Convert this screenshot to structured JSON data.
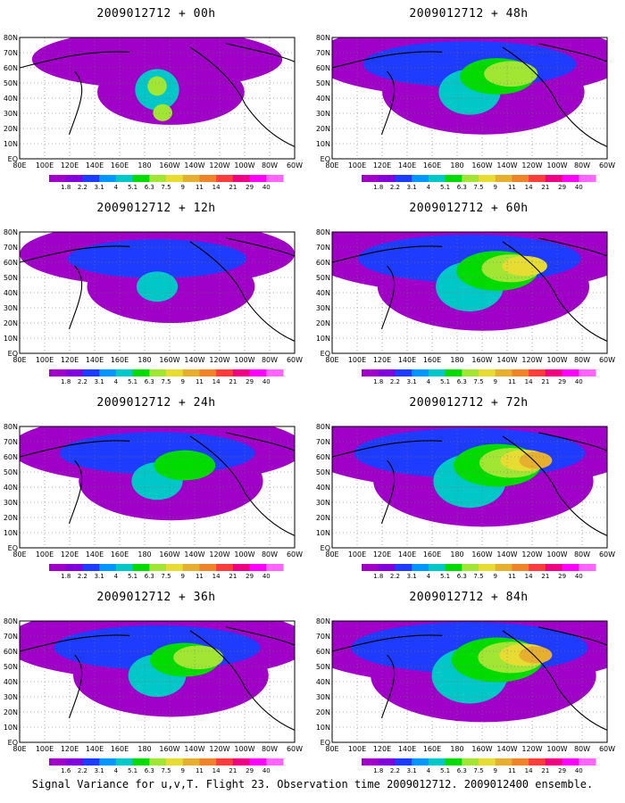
{
  "panels": [
    {
      "title": "2009012712 + 00h",
      "intensity": 0.35
    },
    {
      "title": "2009012712 + 48h",
      "intensity": 0.75
    },
    {
      "title": "2009012712 + 12h",
      "intensity": 0.5
    },
    {
      "title": "2009012712 + 60h",
      "intensity": 0.82
    },
    {
      "title": "2009012712 + 24h",
      "intensity": 0.62
    },
    {
      "title": "2009012712 + 72h",
      "intensity": 0.88
    },
    {
      "title": "2009012712 + 36h",
      "intensity": 0.7
    },
    {
      "title": "2009012712 + 84h",
      "intensity": 0.92
    }
  ],
  "lat_labels": [
    "80N",
    "70N",
    "60N",
    "50N",
    "40N",
    "30N",
    "20N",
    "10N",
    "EQ"
  ],
  "lon_labels": [
    "80E",
    "100E",
    "120E",
    "140E",
    "160E",
    "180",
    "160W",
    "140W",
    "120W",
    "100W",
    "80W",
    "60W"
  ],
  "colorbar": {
    "labels": [
      "1.8",
      "2.2",
      "3.1",
      "4",
      "5.1",
      "6.3",
      "7.5",
      "9",
      "11",
      "14",
      "21",
      "29",
      "40"
    ],
    "labels_last_panel": [
      "1.6",
      "2.2",
      "3.1",
      "4",
      "5.1",
      "6.3",
      "7.5",
      "9",
      "11",
      "14",
      "21",
      "29",
      "40"
    ],
    "colors": [
      "#a000c8",
      "#8200dc",
      "#1e3cff",
      "#0096ff",
      "#00c8c8",
      "#00dc00",
      "#a0e632",
      "#e6dc32",
      "#e6af2d",
      "#f08228",
      "#fa3c3c",
      "#f00082",
      "#ff00ff",
      "#ff64ff"
    ]
  },
  "footer": "Signal Variance for u,v,T. Flight 23. Observation time 2009012712. 2009012400 ensemble."
}
